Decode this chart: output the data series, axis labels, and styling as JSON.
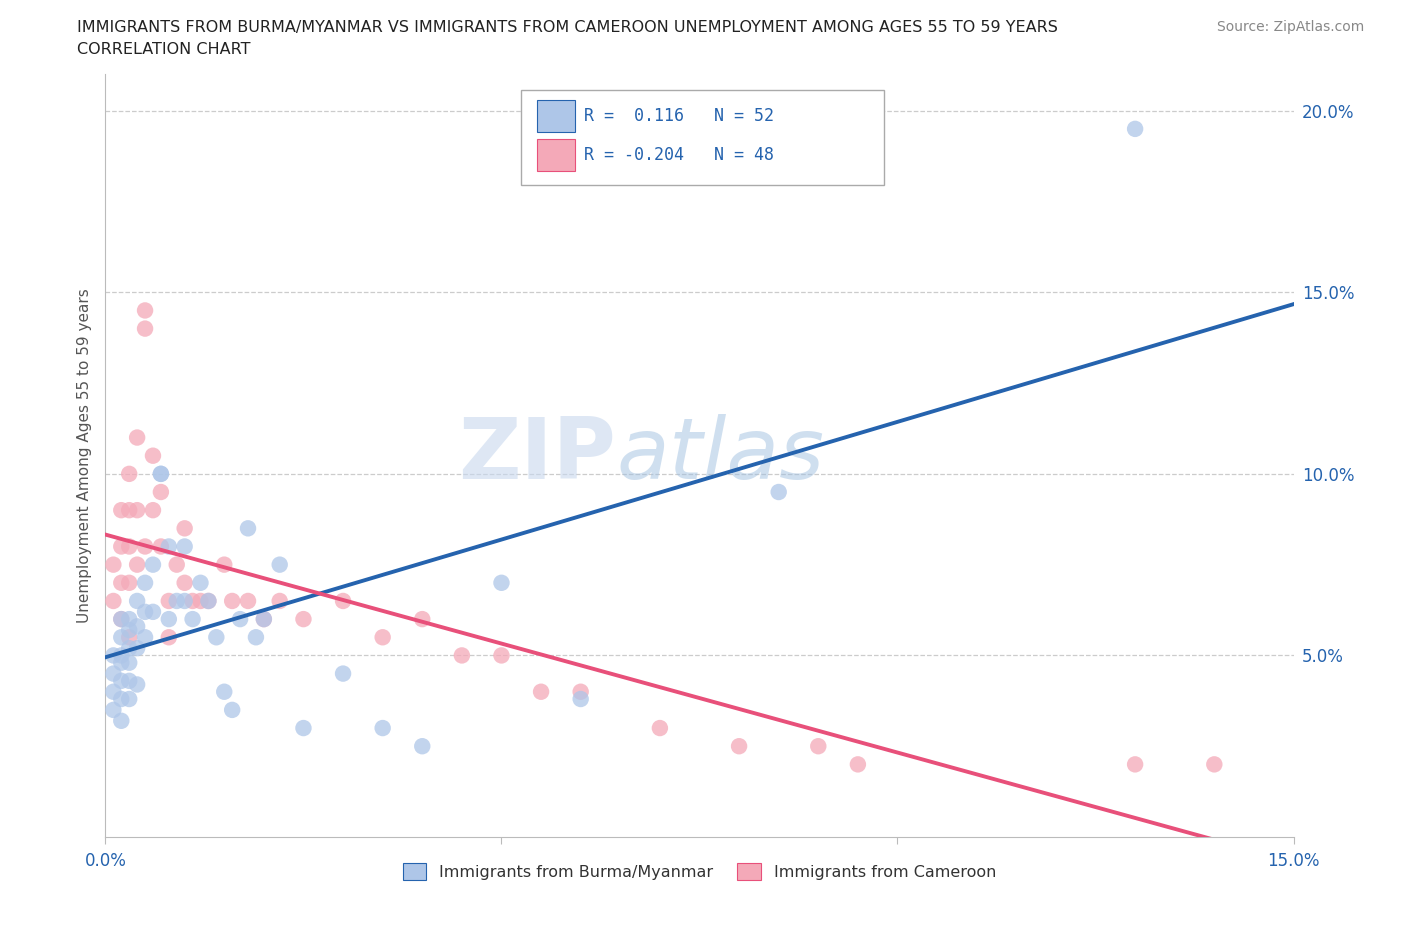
{
  "title_line1": "IMMIGRANTS FROM BURMA/MYANMAR VS IMMIGRANTS FROM CAMEROON UNEMPLOYMENT AMONG AGES 55 TO 59 YEARS",
  "title_line2": "CORRELATION CHART",
  "source": "Source: ZipAtlas.com",
  "ylabel": "Unemployment Among Ages 55 to 59 years",
  "xlim": [
    0.0,
    0.15
  ],
  "ylim": [
    0.0,
    0.21
  ],
  "ytick_positions": [
    0.05,
    0.1,
    0.15,
    0.2
  ],
  "ytick_labels_right": [
    "5.0%",
    "10.0%",
    "15.0%",
    "20.0%"
  ],
  "xtick_positions": [
    0.0,
    0.05,
    0.1,
    0.15
  ],
  "xtick_labels": [
    "0.0%",
    "",
    "",
    "15.0%"
  ],
  "legend_R1": " 0.116",
  "legend_N1": "52",
  "legend_R2": "-0.204",
  "legend_N2": "48",
  "color_burma": "#aec6e8",
  "color_cameroon": "#f4a9b8",
  "color_burma_line": "#2563ae",
  "color_cameroon_line": "#e8507a",
  "scatter_alpha": 0.75,
  "watermark_zip": "ZIP",
  "watermark_atlas": "atlas",
  "legend_label1": "Immigrants from Burma/Myanmar",
  "legend_label2": "Immigrants from Cameroon",
  "burma_x": [
    0.001,
    0.001,
    0.001,
    0.001,
    0.002,
    0.002,
    0.002,
    0.002,
    0.002,
    0.002,
    0.002,
    0.003,
    0.003,
    0.003,
    0.003,
    0.003,
    0.003,
    0.004,
    0.004,
    0.004,
    0.004,
    0.005,
    0.005,
    0.005,
    0.006,
    0.006,
    0.007,
    0.007,
    0.008,
    0.008,
    0.009,
    0.01,
    0.01,
    0.011,
    0.012,
    0.013,
    0.014,
    0.015,
    0.016,
    0.017,
    0.018,
    0.019,
    0.02,
    0.022,
    0.025,
    0.03,
    0.035,
    0.04,
    0.05,
    0.06,
    0.085,
    0.13
  ],
  "burma_y": [
    0.05,
    0.045,
    0.04,
    0.035,
    0.06,
    0.055,
    0.05,
    0.048,
    0.043,
    0.038,
    0.032,
    0.06,
    0.057,
    0.052,
    0.048,
    0.043,
    0.038,
    0.065,
    0.058,
    0.052,
    0.042,
    0.07,
    0.062,
    0.055,
    0.075,
    0.062,
    0.1,
    0.1,
    0.08,
    0.06,
    0.065,
    0.08,
    0.065,
    0.06,
    0.07,
    0.065,
    0.055,
    0.04,
    0.035,
    0.06,
    0.085,
    0.055,
    0.06,
    0.075,
    0.03,
    0.045,
    0.03,
    0.025,
    0.07,
    0.038,
    0.095,
    0.195
  ],
  "cameroon_x": [
    0.001,
    0.001,
    0.002,
    0.002,
    0.002,
    0.002,
    0.003,
    0.003,
    0.003,
    0.003,
    0.003,
    0.004,
    0.004,
    0.004,
    0.005,
    0.005,
    0.005,
    0.006,
    0.006,
    0.007,
    0.007,
    0.008,
    0.008,
    0.009,
    0.01,
    0.01,
    0.011,
    0.012,
    0.013,
    0.015,
    0.016,
    0.018,
    0.02,
    0.022,
    0.025,
    0.03,
    0.035,
    0.04,
    0.045,
    0.05,
    0.055,
    0.06,
    0.07,
    0.08,
    0.09,
    0.095,
    0.13,
    0.14
  ],
  "cameroon_y": [
    0.075,
    0.065,
    0.09,
    0.08,
    0.07,
    0.06,
    0.1,
    0.09,
    0.08,
    0.07,
    0.055,
    0.11,
    0.09,
    0.075,
    0.145,
    0.14,
    0.08,
    0.105,
    0.09,
    0.095,
    0.08,
    0.065,
    0.055,
    0.075,
    0.085,
    0.07,
    0.065,
    0.065,
    0.065,
    0.075,
    0.065,
    0.065,
    0.06,
    0.065,
    0.06,
    0.065,
    0.055,
    0.06,
    0.05,
    0.05,
    0.04,
    0.04,
    0.03,
    0.025,
    0.025,
    0.02,
    0.02,
    0.02
  ]
}
